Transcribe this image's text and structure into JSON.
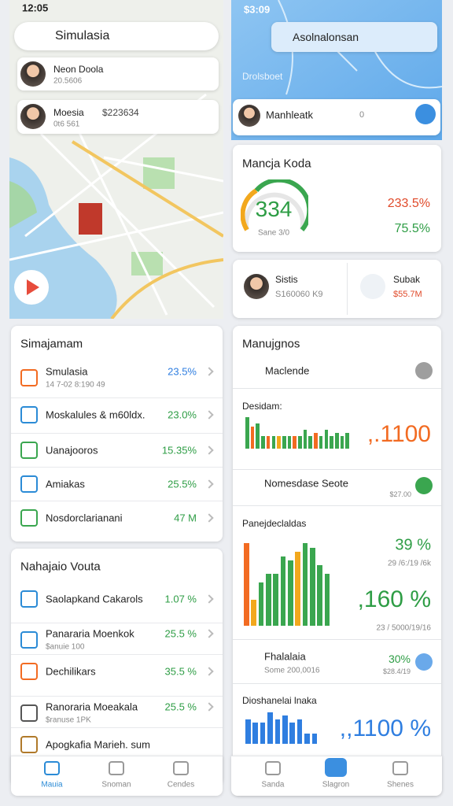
{
  "left": {
    "status_time": "12:05",
    "search": "Simulasia",
    "contacts": [
      {
        "name": "Neon Doola",
        "sub": "20.5606"
      },
      {
        "name": "Moesia",
        "amount": "$223634",
        "sub": "0t6 561"
      }
    ],
    "list1": {
      "title": "Simajamam",
      "rows": [
        {
          "label": "Smulasia",
          "sub": "14 7-02 8:190 49",
          "value": "23.5%"
        },
        {
          "label": "Moskalules & m60ldx.",
          "value": "23.0%"
        },
        {
          "label": "Uanajooros",
          "value": "15.35%"
        },
        {
          "label": "Amiakas",
          "value": "25.5%"
        },
        {
          "label": "Nosdorclarianani",
          "value": "47 M"
        }
      ]
    },
    "list2": {
      "title": "Nahajaio Vouta",
      "rows": [
        {
          "label": "Saolapkand Cakarols",
          "value": "1.07 %"
        },
        {
          "label": "Panararia Moenkok",
          "sub": "$anuie 100",
          "value": "25.5 %"
        },
        {
          "label": "Dechilikars",
          "value": "35.5 %"
        },
        {
          "label": "Ranoraria Moeakala",
          "sub": "$ranuse 1PK",
          "value": "25.5 %"
        },
        {
          "label": "Apogkafia Marieh. sum"
        }
      ]
    },
    "nav": [
      "Mauia",
      "Snoman",
      "Cendes"
    ]
  },
  "right": {
    "status_time": "$3:09",
    "search": "Asolnalonsan",
    "map_label": "Drolsboet",
    "contact": {
      "name": "Manhleatk",
      "badge": "0"
    },
    "gauge_card": {
      "title": "Mancja Koda",
      "value": "334",
      "sub": "Sane 3/0",
      "stats": [
        "233.5%",
        "75.5%"
      ]
    },
    "people": [
      {
        "name": "Sistis",
        "sub": "S160060 K9"
      },
      {
        "name": "Subak",
        "sub": "$55.7M"
      }
    ],
    "insights": {
      "title": "Manujgnos",
      "row1": "Maclende",
      "chart1": {
        "title": "Desidam:",
        "value": ",.1100",
        "bars": [
          10,
          7,
          8,
          4,
          4,
          4,
          4,
          4,
          4,
          4,
          4,
          6,
          4,
          5,
          4,
          6,
          4,
          5,
          4,
          5
        ],
        "colors": [
          "#3aa64f",
          "#f26b22",
          "#3aa64f",
          "#3aa64f",
          "#f26b22",
          "#3aa64f",
          "#f2a81d",
          "#3aa64f",
          "#3aa64f",
          "#f26b22",
          "#3aa64f",
          "#3aa64f",
          "#3aa64f",
          "#f26b22",
          "#3aa64f",
          "#3aa64f",
          "#3aa64f",
          "#3aa64f",
          "#3aa64f",
          "#3aa64f"
        ]
      },
      "row2": {
        "label": "Nomesdase Seote",
        "sub": "$27.00"
      },
      "chart2": {
        "title": "Panejdeclaldas",
        "stat1": "39 %",
        "stat1_sub": "29 /6:/19 /6k",
        "stat2": ",160 %",
        "stat2_sub": "23 / 5000/19/16",
        "bars": [
          9.5,
          3,
          5,
          6,
          6,
          8,
          7.5,
          8.5,
          9.5,
          9,
          7,
          6
        ],
        "colors": [
          "#f26b22",
          "#f2a81d",
          "#3aa64f",
          "#3aa64f",
          "#3aa64f",
          "#3aa64f",
          "#3aa64f",
          "#f2a81d",
          "#3aa64f",
          "#3aa64f",
          "#3aa64f",
          "#3aa64f"
        ]
      },
      "row3": {
        "label": "Fhalalaia",
        "sub": "Some 200,0016",
        "value": "30%",
        "value_sub": "$28.4/19"
      },
      "chart3": {
        "title": "Dioshanelai lnaka",
        "value": ",,1100 %",
        "bars": [
          7,
          6,
          6,
          9,
          7,
          8,
          6,
          7,
          3,
          3
        ],
        "colors": [
          "#2f7ee0",
          "#2f7ee0",
          "#2f7ee0",
          "#2f7ee0",
          "#2f7ee0",
          "#2f7ee0",
          "#2f7ee0",
          "#2f7ee0",
          "#2f7ee0",
          "#2f7ee0"
        ]
      }
    },
    "nav": [
      "Sanda",
      "Slagron",
      "Shenes"
    ]
  }
}
